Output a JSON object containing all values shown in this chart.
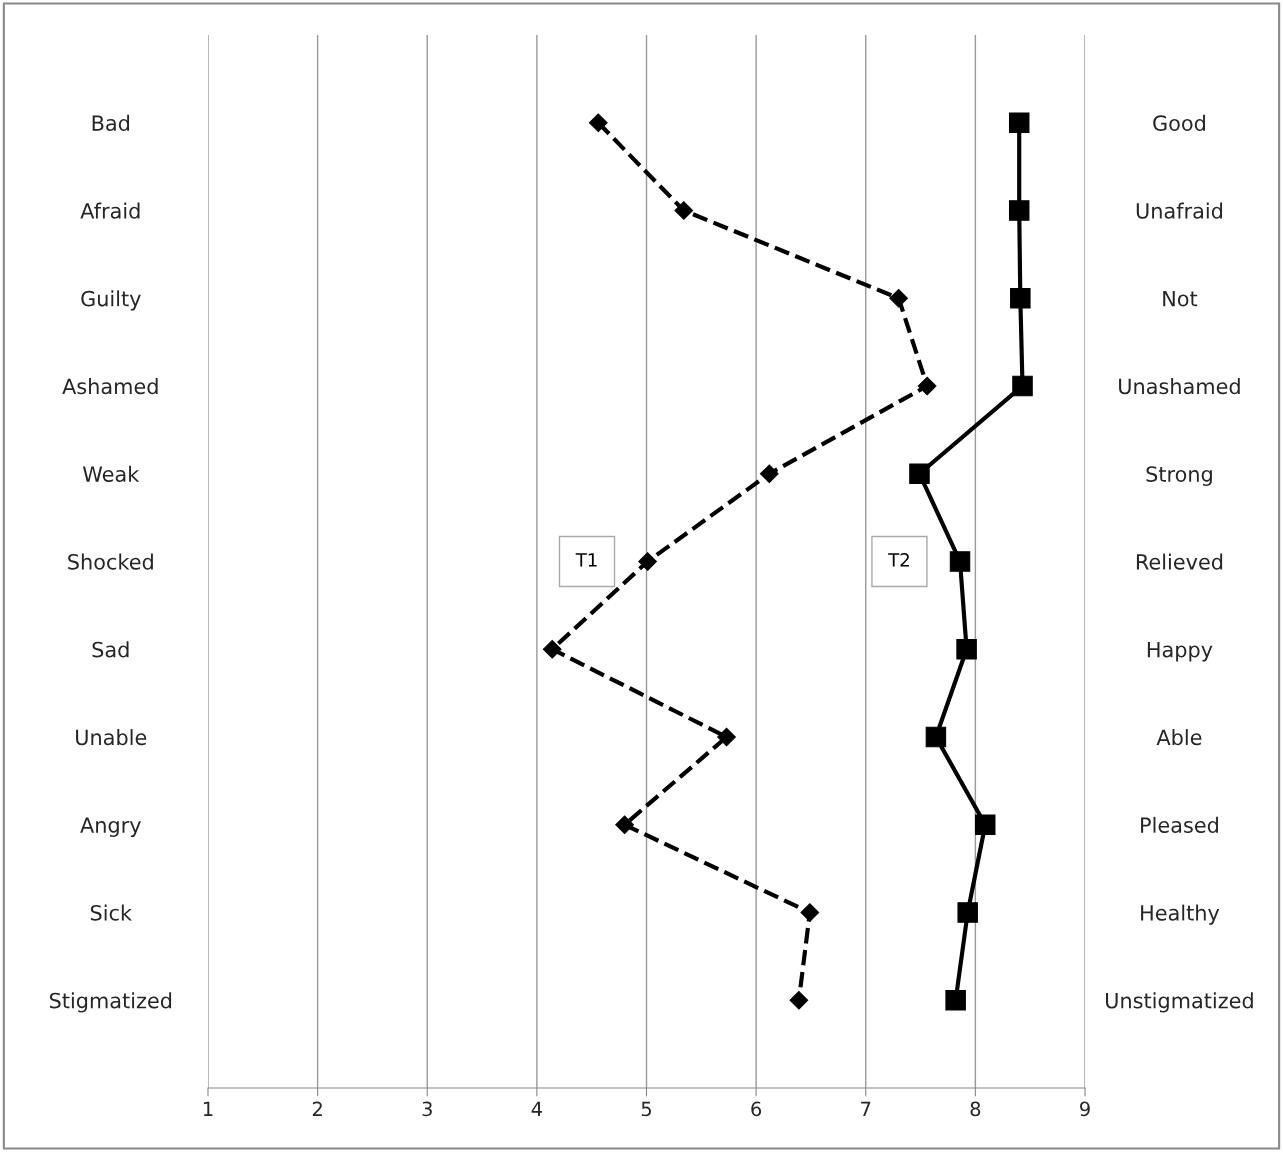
{
  "chart_data": {
    "type": "line",
    "orientation": "horizontal",
    "categories": [
      "Bad",
      "Afraid",
      "Guilty",
      "Ashamed",
      "Weak",
      "Shocked",
      "Sad",
      "Unable",
      "Angry",
      "Sick",
      "Stigmatized"
    ],
    "y2_categories": [
      "Good",
      "Unafraid",
      "Not",
      "Unashamed",
      "Strong",
      "Relieved",
      "Happy",
      "Able",
      "Pleased",
      "Healthy",
      "Unstigmatized"
    ],
    "series": [
      {
        "name": "T1",
        "color": "#000000",
        "marker": "diamond",
        "line_style": "dashed",
        "values": [
          4.56,
          5.34,
          7.3,
          7.56,
          6.12,
          5.01,
          4.14,
          5.73,
          4.8,
          6.49,
          6.39
        ]
      },
      {
        "name": "T2",
        "color": "#000000",
        "marker": "square",
        "line_style": "solid",
        "values": [
          8.4,
          8.4,
          8.41,
          8.43,
          7.49,
          7.86,
          7.92,
          7.64,
          8.09,
          7.93,
          7.82
        ]
      }
    ],
    "xlim": [
      1,
      9
    ],
    "xticks": [
      1,
      2,
      3,
      4,
      5,
      6,
      7,
      8,
      9
    ],
    "grid": "x",
    "legend": false
  }
}
